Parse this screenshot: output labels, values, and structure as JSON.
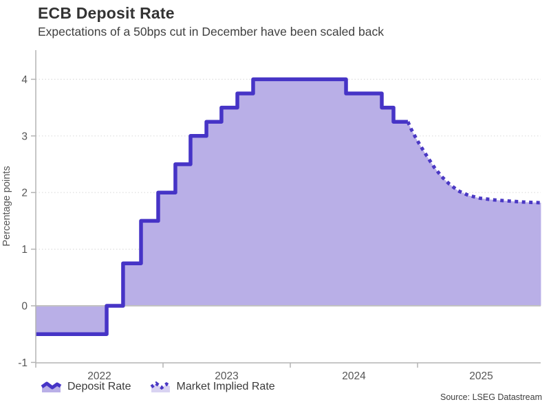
{
  "header": {
    "title": "ECB Deposit Rate",
    "subtitle": "Expectations of a 50bps cut in December have been scaled back"
  },
  "chart_data": {
    "type": "area",
    "title": "ECB Deposit Rate",
    "xlabel": "",
    "ylabel": "Percentage points",
    "ylim": [
      -1,
      4.5
    ],
    "xlim": [
      2022,
      2025.97
    ],
    "grid": "horizontal-dotted",
    "legend_position": "bottom",
    "y_ticks": [
      -1,
      0,
      1,
      2,
      3,
      4
    ],
    "y_gridlines": [
      1,
      2,
      3,
      4
    ],
    "x_ticks": [
      2022,
      2023,
      2024,
      2025
    ],
    "x_tick_labels": [
      "2022",
      "2023",
      "2024",
      "2025"
    ],
    "series": [
      {
        "name": "Deposit Rate",
        "style": "step-solid",
        "points": [
          [
            2022.0,
            -0.5
          ],
          [
            2022.557,
            0.0
          ],
          [
            2022.686,
            0.75
          ],
          [
            2022.827,
            1.5
          ],
          [
            2022.962,
            2.0
          ],
          [
            2023.097,
            2.5
          ],
          [
            2023.216,
            3.0
          ],
          [
            2023.341,
            3.25
          ],
          [
            2023.459,
            3.5
          ],
          [
            2023.584,
            3.75
          ],
          [
            2023.708,
            4.0
          ],
          [
            2024.438,
            3.75
          ],
          [
            2024.719,
            3.5
          ],
          [
            2024.811,
            3.25
          ]
        ],
        "end_x": 2024.924
      },
      {
        "name": "Market Implied Rate",
        "style": "dotted",
        "points": [
          [
            2024.924,
            3.25
          ],
          [
            2024.95,
            3.12
          ],
          [
            2024.99,
            2.95
          ],
          [
            2025.03,
            2.8
          ],
          [
            2025.08,
            2.62
          ],
          [
            2025.13,
            2.45
          ],
          [
            2025.19,
            2.28
          ],
          [
            2025.25,
            2.15
          ],
          [
            2025.32,
            2.03
          ],
          [
            2025.4,
            1.95
          ],
          [
            2025.49,
            1.9
          ],
          [
            2025.6,
            1.87
          ],
          [
            2025.72,
            1.85
          ],
          [
            2025.85,
            1.83
          ],
          [
            2025.97,
            1.82
          ]
        ]
      }
    ],
    "colors": {
      "line": "#4634c6",
      "dots": "#4a38c4",
      "fill": "#b9afe7",
      "grid": "#dcdcdc",
      "zero_line": "#c2c2c2",
      "axis": "#b3b3b3",
      "tick_label": "#555555"
    }
  },
  "legend": {
    "items": [
      {
        "label": "Deposit Rate"
      },
      {
        "label": "Market Implied Rate"
      }
    ]
  },
  "footer": {
    "source": "Source: LSEG Datastream"
  }
}
